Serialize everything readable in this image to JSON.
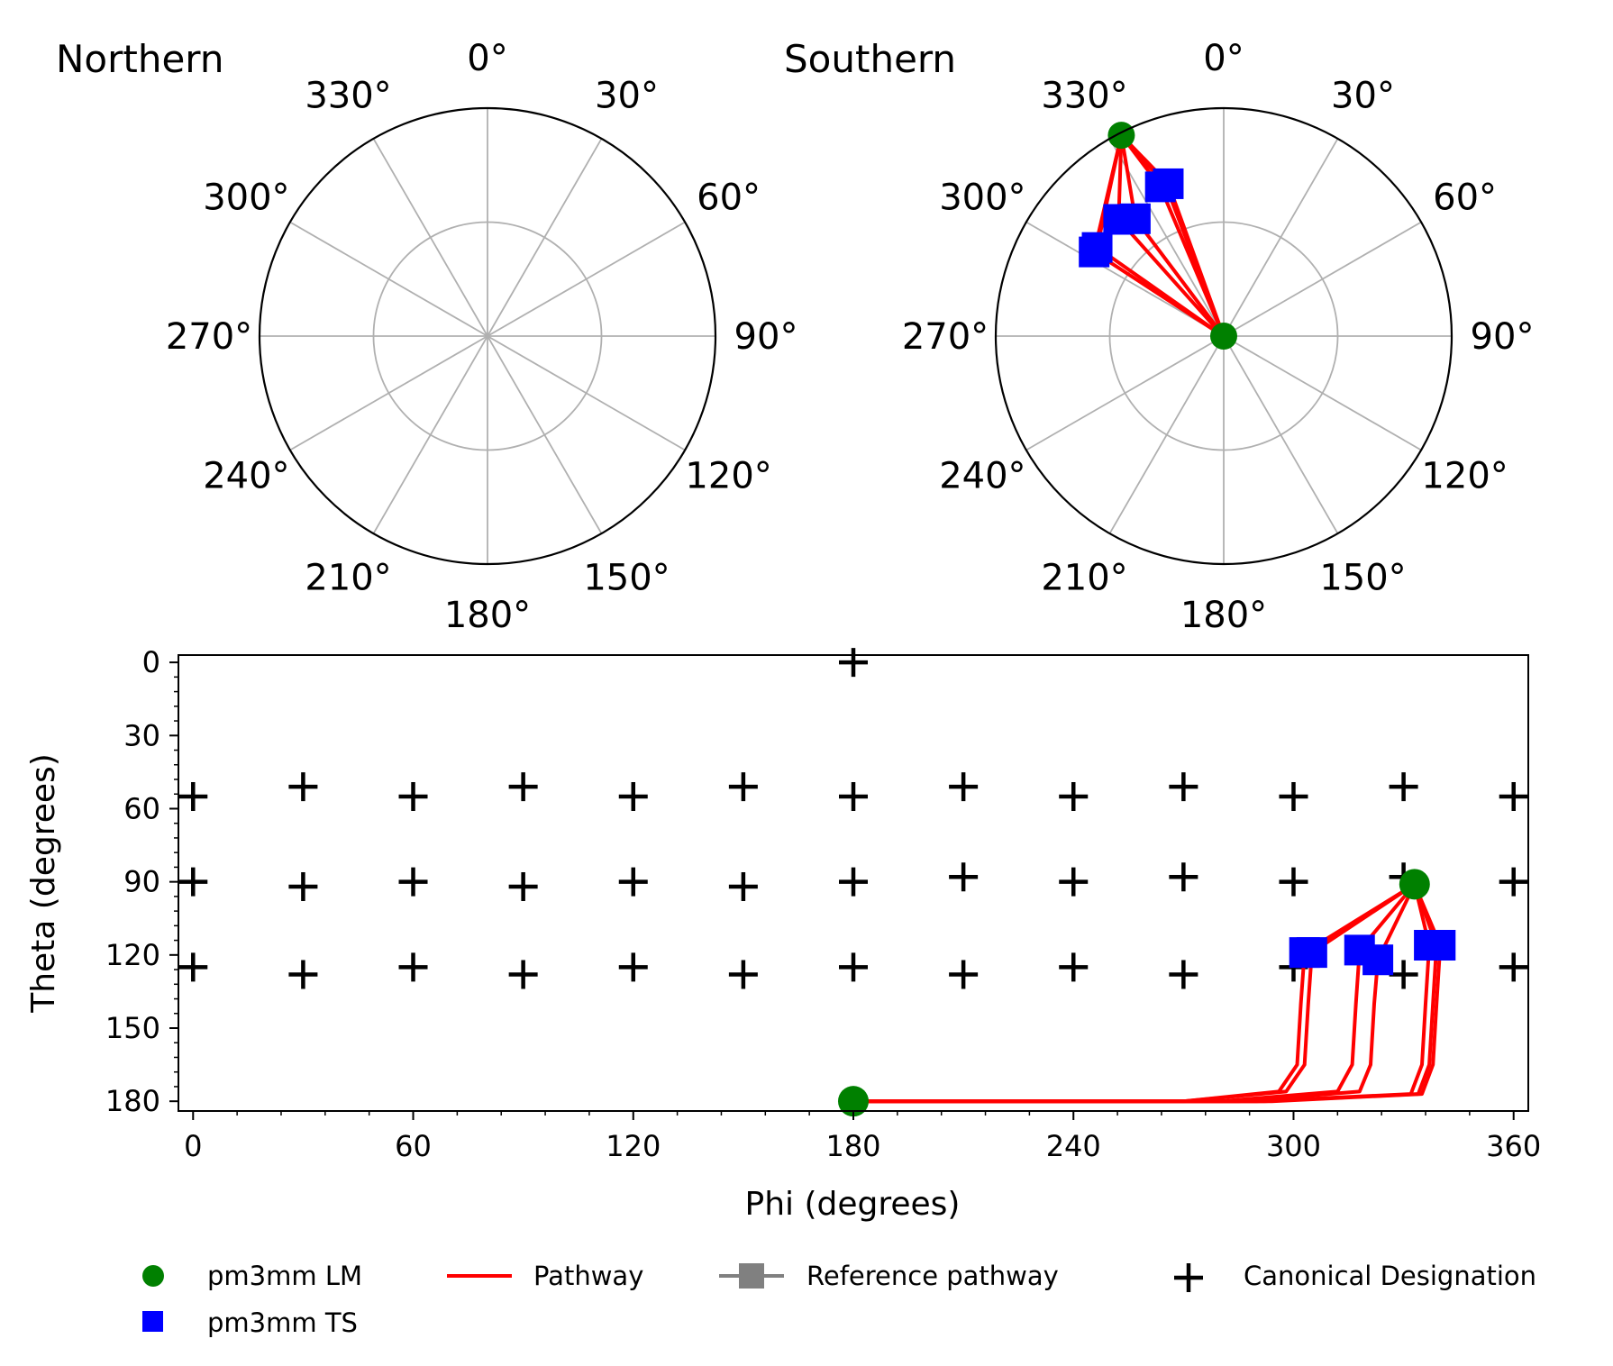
{
  "colors": {
    "local_minimum": "#008000",
    "transition_state": "#0000ff",
    "pathway": "#ff0000",
    "reference": "#808080",
    "canonical": "#000000",
    "grid": "#b0b0b0"
  },
  "chart_data": [
    {
      "type": "polar",
      "title": "Northern",
      "theta_tick_labels": [
        "0°",
        "30°",
        "60°",
        "90°",
        "120°",
        "150°",
        "180°",
        "210°",
        "240°",
        "270°",
        "300°",
        "330°"
      ],
      "theta_direction": "clockwise",
      "theta_zero": "top",
      "radial_gridlines": 2,
      "series": []
    },
    {
      "type": "polar",
      "title": "Southern",
      "theta_tick_labels": [
        "0°",
        "30°",
        "60°",
        "90°",
        "120°",
        "150°",
        "180°",
        "210°",
        "240°",
        "270°",
        "300°",
        "330°"
      ],
      "theta_direction": "clockwise",
      "theta_zero": "top",
      "radial_gridlines": 2,
      "series": [
        {
          "name": "pm3mm LM",
          "marker": "circle",
          "points": [
            {
              "phi": 180,
              "theta": 180
            },
            {
              "phi": 333,
              "theta": 91
            }
          ]
        },
        {
          "name": "pm3mm TS",
          "marker": "square",
          "points": [
            {
              "phi": 303,
              "theta": 119
            },
            {
              "phi": 305,
              "theta": 119
            },
            {
              "phi": 318,
              "theta": 118
            },
            {
              "phi": 323,
              "theta": 122
            },
            {
              "phi": 337,
              "theta": 116
            },
            {
              "phi": 340,
              "theta": 116
            }
          ]
        },
        {
          "name": "Pathway",
          "marker": "line",
          "paths": [
            {
              "phi": [
                180,
                302,
                303,
                333
              ],
              "theta": [
                180,
                175,
                119,
                91
              ]
            },
            {
              "phi": [
                180,
                304,
                305,
                333
              ],
              "theta": [
                180,
                175,
                119,
                91
              ]
            },
            {
              "phi": [
                180,
                316,
                318,
                333
              ],
              "theta": [
                180,
                175,
                118,
                91
              ]
            },
            {
              "phi": [
                180,
                322,
                323,
                333
              ],
              "theta": [
                180,
                175,
                122,
                91
              ]
            },
            {
              "phi": [
                180,
                336,
                337,
                333
              ],
              "theta": [
                180,
                175,
                116,
                91
              ]
            },
            {
              "phi": [
                180,
                338,
                339,
                333
              ],
              "theta": [
                180,
                175,
                116,
                91
              ]
            },
            {
              "phi": [
                180,
                339,
                340,
                333
              ],
              "theta": [
                180,
                175,
                116,
                91
              ]
            }
          ]
        }
      ]
    },
    {
      "type": "scatter",
      "xlabel": "Phi (degrees)",
      "ylabel": "Theta (degrees)",
      "xlim": [
        -4,
        364
      ],
      "ylim": [
        184,
        -3
      ],
      "y_inverted": true,
      "xticks": [
        0,
        60,
        120,
        180,
        240,
        300,
        360
      ],
      "yticks": [
        0,
        30,
        60,
        90,
        120,
        150,
        180
      ],
      "xtick_labels": [
        "0",
        "60",
        "120",
        "180",
        "240",
        "300",
        "360"
      ],
      "ytick_labels": [
        "0",
        "30",
        "60",
        "90",
        "120",
        "150",
        "180"
      ],
      "series": [
        {
          "name": "pm3mm LM",
          "marker": "circle",
          "points": [
            {
              "phi": 180,
              "theta": 180
            },
            {
              "phi": 333,
              "theta": 91
            }
          ]
        },
        {
          "name": "pm3mm TS",
          "marker": "square",
          "points": [
            {
              "phi": 303,
              "theta": 119
            },
            {
              "phi": 305,
              "theta": 119
            },
            {
              "phi": 318,
              "theta": 118
            },
            {
              "phi": 323,
              "theta": 122
            },
            {
              "phi": 337,
              "theta": 116
            },
            {
              "phi": 340,
              "theta": 116
            }
          ]
        },
        {
          "name": "Pathway",
          "marker": "line",
          "paths": [
            {
              "phi": [
                180,
                270,
                296,
                301,
                302,
                303,
                333
              ],
              "theta": [
                180,
                180,
                176,
                165,
                140,
                119,
                91
              ]
            },
            {
              "phi": [
                180,
                270,
                298,
                303,
                304,
                305,
                333
              ],
              "theta": [
                180,
                180,
                176,
                165,
                140,
                119,
                91
              ]
            },
            {
              "phi": [
                180,
                280,
                312,
                316,
                317,
                318,
                333
              ],
              "theta": [
                180,
                180,
                176,
                165,
                140,
                118,
                91
              ]
            },
            {
              "phi": [
                180,
                285,
                318,
                321,
                322,
                323,
                333
              ],
              "theta": [
                180,
                180,
                176,
                165,
                140,
                122,
                91
              ]
            },
            {
              "phi": [
                180,
                290,
                332,
                335,
                336,
                337,
                333
              ],
              "theta": [
                180,
                180,
                177,
                165,
                140,
                116,
                91
              ]
            },
            {
              "phi": [
                180,
                292,
                334,
                337,
                338,
                339,
                333
              ],
              "theta": [
                180,
                180,
                177,
                165,
                140,
                116,
                91
              ]
            },
            {
              "phi": [
                180,
                294,
                335,
                338,
                339,
                340,
                333
              ],
              "theta": [
                180,
                180,
                177,
                165,
                140,
                116,
                91
              ]
            }
          ]
        },
        {
          "name": "Canonical Designation",
          "marker": "plus",
          "points": [
            {
              "phi": 180,
              "theta": 0
            },
            {
              "phi": 0,
              "theta": 55
            },
            {
              "phi": 30,
              "theta": 51
            },
            {
              "phi": 60,
              "theta": 55
            },
            {
              "phi": 90,
              "theta": 51
            },
            {
              "phi": 120,
              "theta": 55
            },
            {
              "phi": 150,
              "theta": 51
            },
            {
              "phi": 180,
              "theta": 55
            },
            {
              "phi": 210,
              "theta": 51
            },
            {
              "phi": 240,
              "theta": 55
            },
            {
              "phi": 270,
              "theta": 51
            },
            {
              "phi": 300,
              "theta": 55
            },
            {
              "phi": 330,
              "theta": 51
            },
            {
              "phi": 360,
              "theta": 55
            },
            {
              "phi": 0,
              "theta": 90
            },
            {
              "phi": 30,
              "theta": 92
            },
            {
              "phi": 60,
              "theta": 90
            },
            {
              "phi": 90,
              "theta": 92
            },
            {
              "phi": 120,
              "theta": 90
            },
            {
              "phi": 150,
              "theta": 92
            },
            {
              "phi": 180,
              "theta": 90
            },
            {
              "phi": 210,
              "theta": 88
            },
            {
              "phi": 240,
              "theta": 90
            },
            {
              "phi": 270,
              "theta": 88
            },
            {
              "phi": 300,
              "theta": 90
            },
            {
              "phi": 330,
              "theta": 88
            },
            {
              "phi": 360,
              "theta": 90
            },
            {
              "phi": 0,
              "theta": 125
            },
            {
              "phi": 30,
              "theta": 128
            },
            {
              "phi": 60,
              "theta": 125
            },
            {
              "phi": 90,
              "theta": 128
            },
            {
              "phi": 120,
              "theta": 125
            },
            {
              "phi": 150,
              "theta": 128
            },
            {
              "phi": 180,
              "theta": 125
            },
            {
              "phi": 210,
              "theta": 128
            },
            {
              "phi": 240,
              "theta": 125
            },
            {
              "phi": 270,
              "theta": 128
            },
            {
              "phi": 300,
              "theta": 125
            },
            {
              "phi": 330,
              "theta": 128
            },
            {
              "phi": 360,
              "theta": 125
            }
          ]
        }
      ]
    }
  ],
  "legend": {
    "placement": "bottom",
    "entries": [
      {
        "label": "pm3mm LM",
        "marker": "circle"
      },
      {
        "label": "pm3mm TS",
        "marker": "square"
      },
      {
        "label": "Pathway",
        "marker": "line"
      },
      {
        "label": "Reference pathway",
        "marker": "line-square"
      },
      {
        "label": "Canonical Designation",
        "marker": "plus"
      }
    ]
  }
}
